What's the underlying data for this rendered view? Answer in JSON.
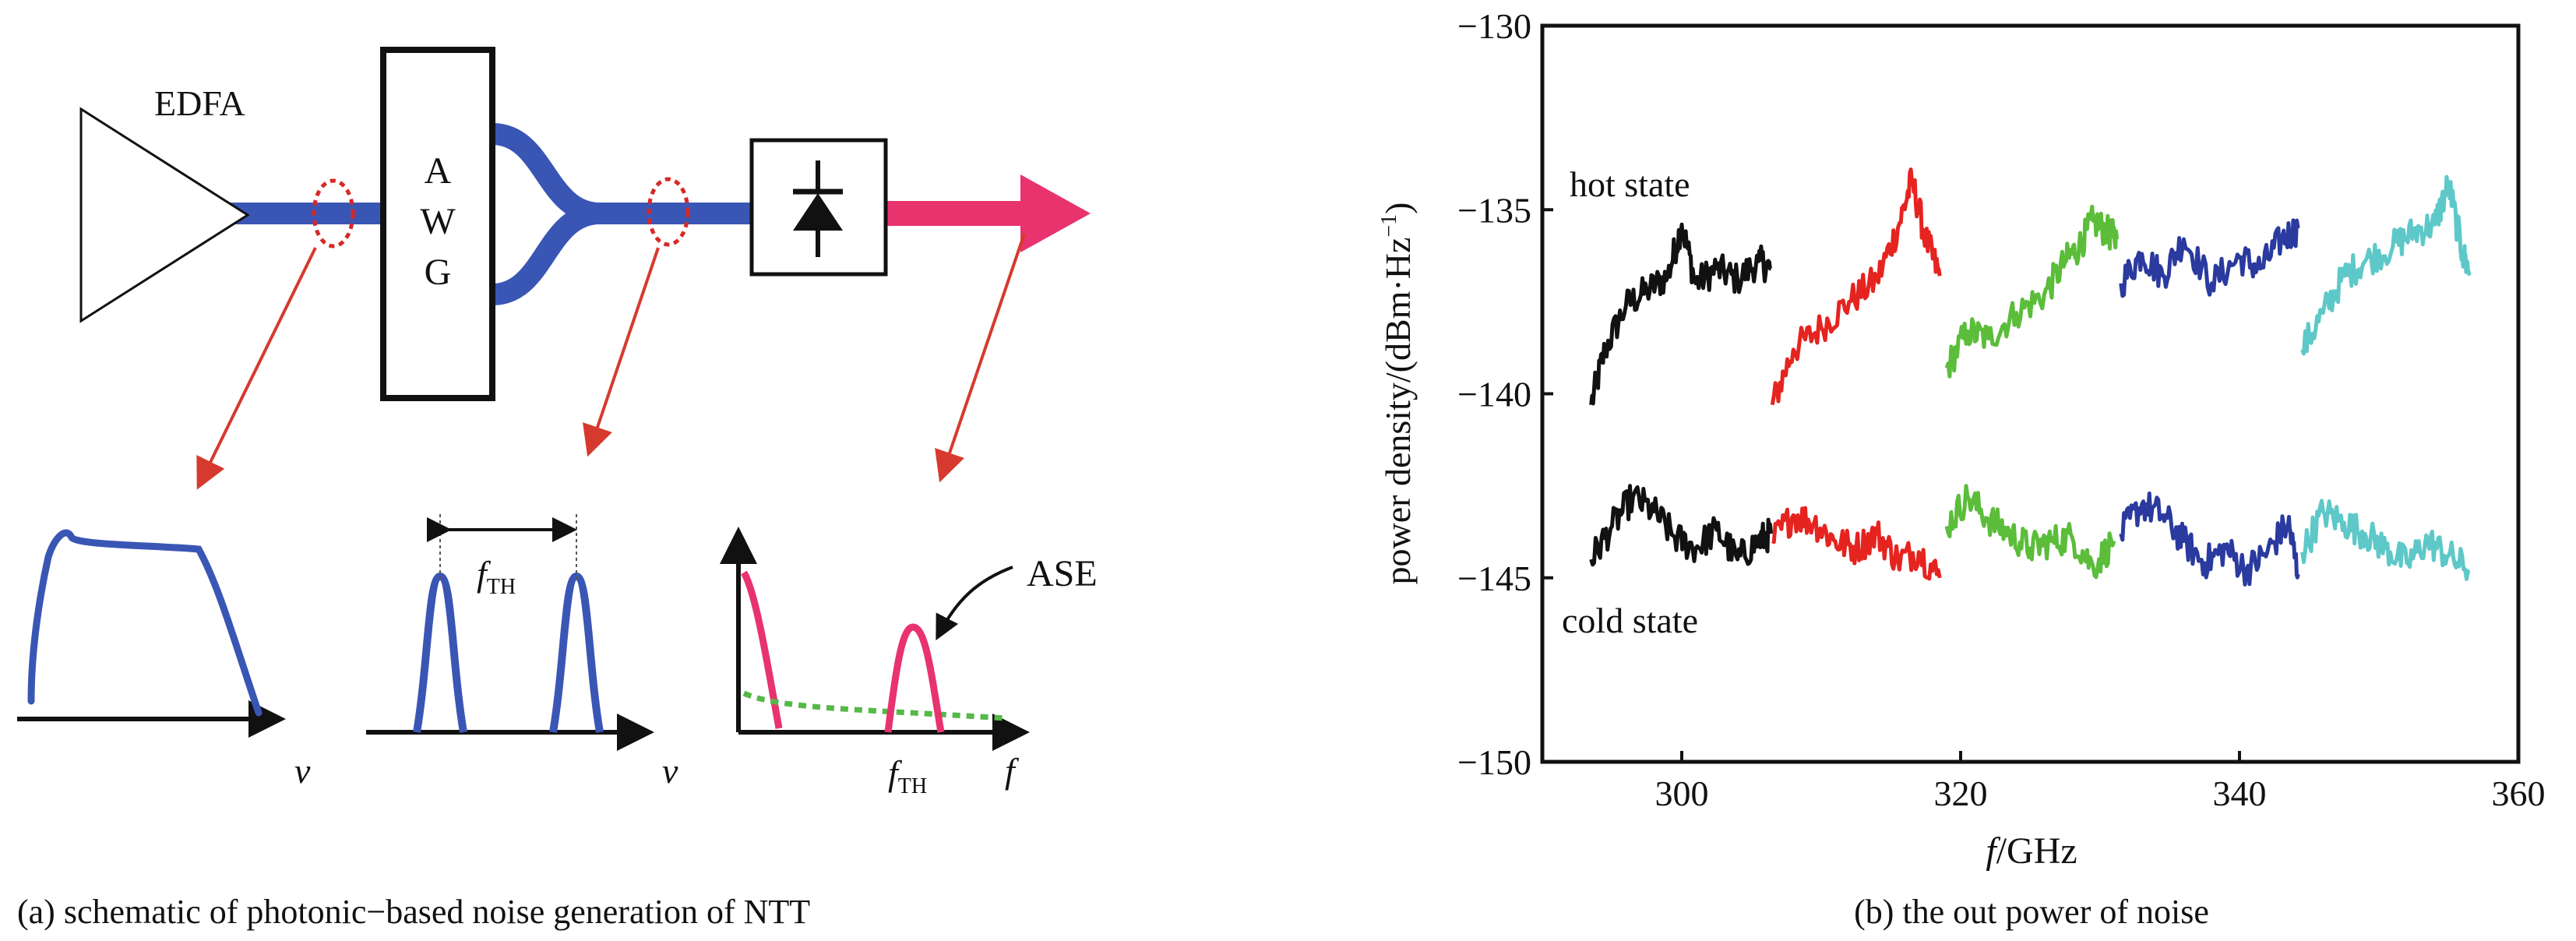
{
  "left_panel": {
    "caption": "(a) schematic of photonic−based noise generation of NTT",
    "amplifier_label": "EDFA",
    "awg_letters": [
      "A",
      "W",
      "G"
    ],
    "spacing_label": {
      "main": "f",
      "sub": "TH"
    },
    "axis_label_nu": "v",
    "axis_label_f": "f",
    "threshold_label": {
      "main": "f",
      "sub": "TH"
    },
    "ase_label": "ASE",
    "colors": {
      "fiber": "#3a56b5",
      "output": "#e8336e",
      "pointer": "#d63a2e",
      "marker": "#d62828",
      "noise_floor": "#55b848"
    }
  },
  "right_panel": {
    "caption": "(b) the out power of noise",
    "hot_label": "hot state",
    "cold_label": "cold state"
  },
  "chart_data": {
    "type": "line",
    "xlabel": {
      "italic": "f",
      "rest": "/GHz"
    },
    "ylabel": "power density/(dBm·Hz",
    "ylabel_exponent": "−1",
    "ylabel_close": ")",
    "xlim": [
      290,
      360
    ],
    "ylim": [
      -150,
      -130
    ],
    "xticks": [
      "300",
      "320",
      "340",
      "360"
    ],
    "yticks": [
      "−130",
      "−135",
      "−140",
      "−145",
      "−150"
    ],
    "ytick_values": [
      -130,
      -135,
      -140,
      -145,
      -150
    ],
    "xtick_values": [
      300,
      320,
      340,
      360
    ],
    "series": [
      {
        "color": "#111111",
        "state": "hot",
        "x": [
          293.5,
          294.5,
          296,
          297.5,
          299,
          300,
          301,
          302.5,
          304,
          305.5,
          306.4
        ],
        "y": [
          -140.3,
          -138.8,
          -137.6,
          -137.2,
          -136.8,
          -135.4,
          -137.0,
          -136.6,
          -136.9,
          -136.4,
          -136.6
        ]
      },
      {
        "color": "#e52420",
        "state": "hot",
        "x": [
          306.5,
          308,
          310,
          312,
          314,
          315.5,
          316.5,
          317.5,
          318.5
        ],
        "y": [
          -140.3,
          -138.8,
          -138.2,
          -137.5,
          -136.9,
          -135.5,
          -134.2,
          -135.8,
          -136.8
        ]
      },
      {
        "color": "#5bbd3a",
        "state": "hot",
        "x": [
          319,
          320.5,
          322,
          324,
          326,
          327.5,
          328.5,
          329.5,
          330.5,
          331.2
        ],
        "y": [
          -139.3,
          -138.3,
          -138.5,
          -137.8,
          -137.3,
          -136.4,
          -136.0,
          -135.3,
          -135.6,
          -135.8
        ]
      },
      {
        "color": "#2a3a9e",
        "state": "hot",
        "x": [
          331.5,
          333,
          334.5,
          336,
          338,
          340,
          341.5,
          343,
          344.2
        ],
        "y": [
          -137.0,
          -136.2,
          -136.8,
          -135.8,
          -137.0,
          -136.3,
          -136.6,
          -135.8,
          -135.5
        ]
      },
      {
        "color": "#5ec8c8",
        "state": "hot",
        "x": [
          344.5,
          346,
          347.5,
          349,
          351,
          352.5,
          354,
          355,
          356,
          356.5
        ],
        "y": [
          -138.8,
          -137.8,
          -136.8,
          -136.4,
          -136.0,
          -135.6,
          -135.4,
          -134.3,
          -136.2,
          -136.7
        ]
      },
      {
        "color": "#111111",
        "state": "cold",
        "x": [
          293.5,
          295,
          296.5,
          298,
          299.5,
          301,
          302.5,
          304,
          305.5,
          306.4
        ],
        "y": [
          -144.5,
          -143.6,
          -142.8,
          -143.2,
          -143.9,
          -144.2,
          -143.7,
          -144.5,
          -144.0,
          -143.8
        ]
      },
      {
        "color": "#e52420",
        "state": "cold",
        "x": [
          306.5,
          308,
          309.5,
          311,
          312.5,
          314,
          315.5,
          317,
          318.5
        ],
        "y": [
          -144.0,
          -143.3,
          -143.5,
          -144.0,
          -144.2,
          -143.8,
          -144.5,
          -144.3,
          -145.0
        ]
      },
      {
        "color": "#5bbd3a",
        "state": "cold",
        "x": [
          319,
          320.5,
          322,
          323.5,
          325,
          326.5,
          328,
          329.5,
          331
        ],
        "y": [
          -143.6,
          -142.8,
          -143.4,
          -143.8,
          -144.2,
          -144.0,
          -143.9,
          -144.7,
          -144.0
        ]
      },
      {
        "color": "#2a3a9e",
        "state": "cold",
        "x": [
          331.5,
          333,
          334.5,
          336,
          337.5,
          339,
          340.5,
          342,
          343.5,
          344.2
        ],
        "y": [
          -143.8,
          -143.0,
          -143.3,
          -144.0,
          -144.6,
          -144.2,
          -144.8,
          -144.3,
          -143.5,
          -144.9
        ]
      },
      {
        "color": "#5ec8c8",
        "state": "cold",
        "x": [
          344.5,
          346,
          347.5,
          349,
          350.5,
          352,
          353.5,
          355,
          356.5
        ],
        "y": [
          -144.3,
          -143.2,
          -143.5,
          -143.8,
          -144.2,
          -144.6,
          -144.0,
          -144.4,
          -144.8
        ]
      }
    ]
  }
}
